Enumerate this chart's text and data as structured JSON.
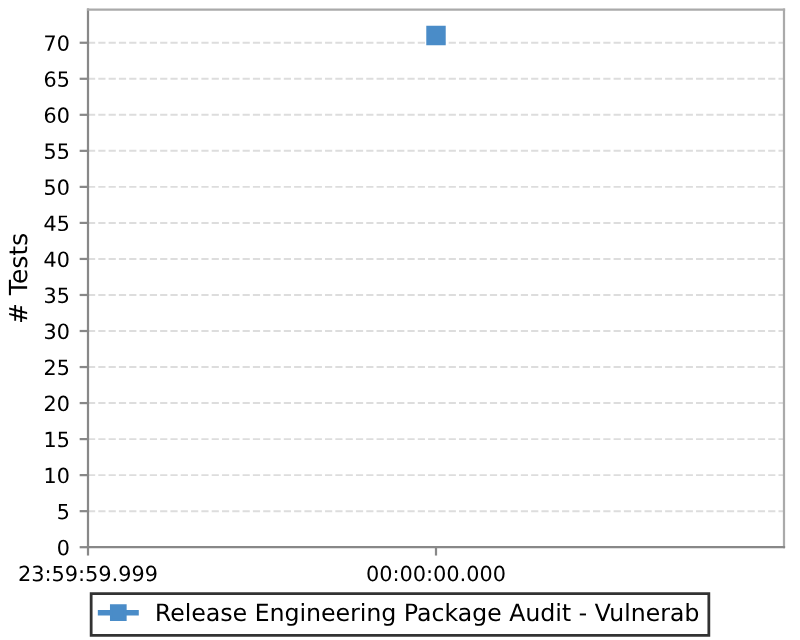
{
  "chart_data": {
    "type": "scatter",
    "ylabel": "# Tests",
    "categories": [
      "23:59:59.999",
      "00:00:00.000",
      null
    ],
    "series": [
      {
        "name": "Release Engineering Package Audit - Vulnerab",
        "color": "#4a8cc8",
        "values": [
          null,
          71,
          null
        ]
      }
    ],
    "ylim": [
      0,
      74.6
    ],
    "yticks": [
      0,
      5,
      10,
      15,
      20,
      25,
      30,
      35,
      40,
      45,
      50,
      55,
      60,
      65,
      70
    ],
    "grid": "y",
    "legend": "bottom",
    "marker": "square"
  }
}
